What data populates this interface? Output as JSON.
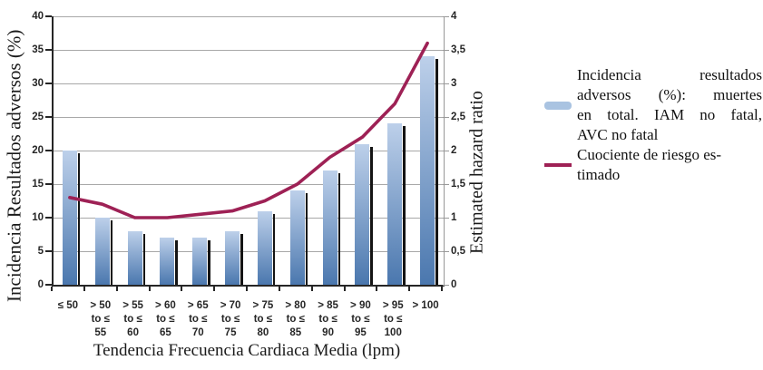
{
  "chart_data": {
    "type": "combo",
    "title": "",
    "categories_display": [
      [
        "≤ 50"
      ],
      [
        "> 50",
        "to ≤",
        "55"
      ],
      [
        "> 55",
        "to ≤",
        "60"
      ],
      [
        "> 60",
        "to ≤",
        "65"
      ],
      [
        "> 65",
        "to ≤",
        "70"
      ],
      [
        "> 70",
        "to ≤",
        "75"
      ],
      [
        "> 75",
        "to ≤",
        "80"
      ],
      [
        "> 80",
        "to ≤",
        "85"
      ],
      [
        "> 85",
        "to ≤",
        "90"
      ],
      [
        "> 90",
        "to ≤",
        "95"
      ],
      [
        "> 95",
        "to ≤",
        "100"
      ],
      [
        "> 100"
      ]
    ],
    "series": [
      {
        "name": "Incidencia resultados adversos (%): muertes en total. IAM no fatal, AVC no fatal",
        "type": "bar",
        "axis": "left",
        "values": [
          20,
          10,
          8,
          7,
          7,
          8,
          11,
          14,
          17,
          21,
          24,
          34
        ],
        "color_top": "#bdd0ea",
        "color_bottom": "#4a77ae"
      },
      {
        "name": "Cuociente de riesgo estimado",
        "type": "line",
        "axis": "right",
        "values": [
          1.3,
          1.2,
          1.0,
          1.0,
          1.05,
          1.1,
          1.25,
          1.5,
          1.9,
          2.2,
          2.7,
          3.6
        ],
        "color": "#9e2155"
      }
    ],
    "left_axis": {
      "label": "Incidencia Resultados adversos (%)",
      "min": 0,
      "max": 40,
      "step": 5,
      "ticks": [
        "0",
        "5",
        "10",
        "15",
        "20",
        "25",
        "30",
        "35",
        "40"
      ]
    },
    "right_axis": {
      "label": "Estimated hazard ratio",
      "min": 0,
      "max": 4,
      "step": 0.5,
      "ticks": [
        "0",
        "0,5",
        "1",
        "1,5",
        "2",
        "2,5",
        "3",
        "3,5",
        "4"
      ]
    },
    "xlabel": "Tendencia Frecuencia Cardiaca Media (lpm)",
    "grid": "horizontal",
    "legend_position": "right"
  },
  "legend": {
    "items": [
      {
        "swatch": "bar",
        "swatch_color": "#a9c3e1",
        "lines": [
          "Incidencia resultados",
          "adversos (%): muertes",
          "en total. IAM no fatal,",
          "AVC no fatal"
        ],
        "justify_lines": 3
      },
      {
        "swatch": "line",
        "swatch_color": "#9e2155",
        "lines": [
          "Cuociente de riesgo es-",
          "timado"
        ],
        "justify_lines": 0
      }
    ]
  },
  "colors": {
    "gridline": "#a8a8a8",
    "axis_line": "#262626",
    "right_axis_line": "#999999",
    "tick_text": "#262626",
    "bar_shadow": "#141414"
  }
}
